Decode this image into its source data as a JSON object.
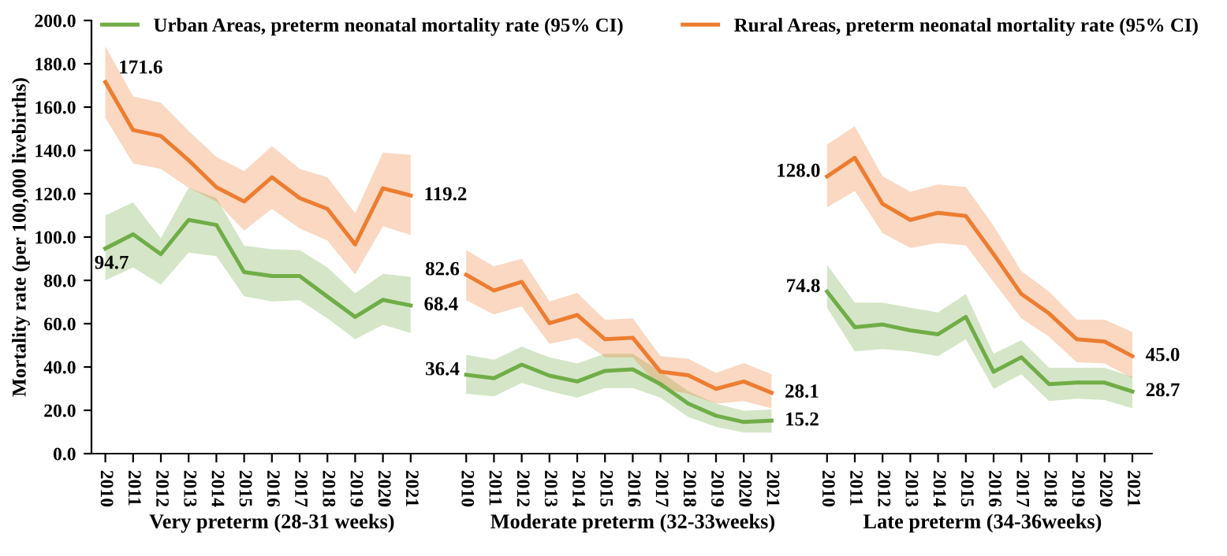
{
  "chart_data": [
    {
      "type": "line",
      "xlabel": "Very preterm (28-31 weeks)",
      "ylabel": "Mortality rate (per 100,000 livebirths)",
      "categories": [
        "2010",
        "2011",
        "2012",
        "2013",
        "2014",
        "2015",
        "2016",
        "2017",
        "2018",
        "2019",
        "2020",
        "2021"
      ],
      "ylim": [
        0,
        200
      ],
      "yticks": [
        {
          "value": 0,
          "label": "0.0"
        },
        {
          "value": 20,
          "label": "20.0"
        },
        {
          "value": 40,
          "label": "40.0"
        },
        {
          "value": 60,
          "label": "60.0"
        },
        {
          "value": 80,
          "label": "80.0"
        },
        {
          "value": 100,
          "label": "100.0"
        },
        {
          "value": 120,
          "label": "120.0"
        },
        {
          "value": 140,
          "label": "140.0"
        },
        {
          "value": 160,
          "label": "160.0"
        },
        {
          "value": 180,
          "label": "180.0"
        },
        {
          "value": 200,
          "label": "200.0"
        }
      ],
      "legend": "top",
      "marker": "none",
      "line_style": "solid",
      "series": [
        {
          "name": "Urban Areas, preterm neonatal mortality rate (95% CI)",
          "color": "#70ad47",
          "values": [
            94.7,
            101.3,
            92.1,
            107.9,
            105.6,
            83.8,
            82,
            82,
            72.5,
            63.1,
            71,
            68.4
          ],
          "lower": [
            80,
            86,
            78,
            92.8,
            91.2,
            72.6,
            70.3,
            70.8,
            62.5,
            52.8,
            59.5,
            55.7
          ],
          "upper": [
            110,
            116,
            99.5,
            122.7,
            118,
            96,
            94.4,
            94,
            86,
            74,
            83,
            81.6
          ],
          "value_labels": [
            "94.7",
            null,
            null,
            null,
            null,
            null,
            null,
            null,
            null,
            null,
            null,
            "68.4"
          ]
        },
        {
          "name": "Rural Areas, preterm neonatal mortality rate (95% CI)",
          "color": "#ed7d31",
          "values": [
            171.6,
            149.4,
            146.7,
            135.5,
            123,
            116.4,
            127.6,
            118,
            113,
            96.6,
            122.5,
            119.2
          ],
          "lower": [
            155,
            134,
            131.5,
            122.7,
            116.4,
            103,
            113,
            104,
            98.4,
            82.7,
            105,
            101
          ],
          "upper": [
            188,
            165,
            162,
            149,
            137,
            130.5,
            142,
            131.5,
            127.6,
            111,
            139,
            138
          ],
          "value_labels": [
            "171.6",
            null,
            null,
            null,
            null,
            null,
            null,
            null,
            null,
            null,
            null,
            "119.2"
          ]
        }
      ]
    },
    {
      "type": "line",
      "xlabel": "Moderate preterm (32-33weeks)",
      "categories": [
        "2010",
        "2011",
        "2012",
        "2013",
        "2014",
        "2015",
        "2016",
        "2017",
        "2018",
        "2019",
        "2020",
        "2021"
      ],
      "ylim": [
        0,
        200
      ],
      "tick_labels": "x",
      "marker": "none",
      "line_style": "solid",
      "series": [
        {
          "color": "#70ad47",
          "values": [
            36.4,
            34.8,
            41.1,
            36,
            33.3,
            38.2,
            38.9,
            32.1,
            23.1,
            17.5,
            14.6,
            15.2
          ],
          "lower": [
            27.6,
            26.5,
            32.6,
            28.8,
            25.8,
            30.3,
            30.3,
            25.8,
            16.9,
            12.4,
            9.7,
            9.7
          ],
          "upper": [
            45.6,
            43.4,
            49.4,
            44.5,
            41.6,
            46.1,
            46.1,
            37.8,
            28.8,
            23.1,
            19.8,
            20.4
          ],
          "value_labels": [
            "36.4",
            null,
            null,
            null,
            null,
            null,
            null,
            null,
            null,
            null,
            null,
            "15.2"
          ]
        },
        {
          "color": "#ed7d31",
          "values": [
            82.6,
            75.3,
            79.3,
            60.2,
            64,
            52.8,
            53.5,
            37.8,
            36.2,
            29.9,
            33.3,
            28.1
          ],
          "lower": [
            70.8,
            64.3,
            68,
            50.6,
            53.5,
            44.5,
            44.5,
            30.3,
            27.6,
            23.1,
            24.3,
            20.9
          ],
          "upper": [
            94,
            86.5,
            90,
            70.3,
            74.2,
            61.8,
            62.5,
            45,
            43.8,
            37.3,
            41.8,
            36.6
          ],
          "value_labels": [
            "82.6",
            null,
            null,
            null,
            null,
            null,
            null,
            null,
            null,
            null,
            null,
            "28.1"
          ]
        }
      ]
    },
    {
      "type": "line",
      "xlabel": "Late preterm (34-36weeks)",
      "categories": [
        "2010",
        "2011",
        "2012",
        "2013",
        "2014",
        "2015",
        "2016",
        "2017",
        "2018",
        "2019",
        "2020",
        "2021"
      ],
      "ylim": [
        0,
        200
      ],
      "tick_labels": "x",
      "marker": "none",
      "line_style": "solid",
      "series": [
        {
          "color": "#70ad47",
          "values": [
            74.8,
            58.4,
            59.6,
            56.9,
            55.1,
            63.1,
            37.8,
            44.5,
            32.1,
            32.8,
            32.8,
            28.7
          ],
          "lower": [
            67.4,
            47.2,
            48.3,
            47.2,
            45,
            52.8,
            29.9,
            36.6,
            24.3,
            25.4,
            24.7,
            20.9
          ],
          "upper": [
            87.2,
            69.7,
            69.7,
            67.4,
            65.2,
            73.7,
            46.1,
            52.4,
            39.6,
            39.6,
            39.6,
            35.5
          ],
          "value_labels": [
            "74.8",
            null,
            null,
            null,
            null,
            null,
            null,
            null,
            null,
            null,
            null,
            "28.7"
          ]
        },
        {
          "color": "#ed7d31",
          "values": [
            128.0,
            136.6,
            115.3,
            107.9,
            111.2,
            109.7,
            92.1,
            73.7,
            64.7,
            52.8,
            51.7,
            45.0
          ],
          "lower": [
            113.7,
            121.3,
            101.8,
            95,
            97.3,
            96.2,
            79.3,
            62.5,
            53.9,
            42.2,
            41.6,
            34.8
          ],
          "upper": [
            142.7,
            151.2,
            128.1,
            120.9,
            124.3,
            123.1,
            105.2,
            84.3,
            74.8,
            61.8,
            61.8,
            56.2
          ],
          "value_labels": [
            "128.0",
            null,
            null,
            null,
            null,
            null,
            null,
            null,
            null,
            null,
            null,
            "45.0"
          ]
        }
      ]
    }
  ]
}
